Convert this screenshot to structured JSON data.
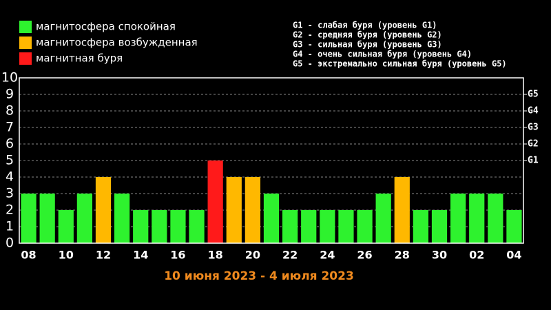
{
  "chart_data": {
    "type": "bar",
    "title": "10 июня 2023 - 4 июля 2023",
    "legend": [
      {
        "name": "магнитосфера спокойная",
        "color": "#2ef22e"
      },
      {
        "name": "магнитосфера возбужденная",
        "color": "#ffb800"
      },
      {
        "name": "магнитная буря",
        "color": "#ff1a1a"
      }
    ],
    "scale_notes": [
      "G1 - слабая буря (уровень G1)",
      "G2 - средняя буря (уровень G2)",
      "G3 - сильная буря (уровень G3)",
      "G4 - очень сильная буря (уровень G4)",
      "G5 - экстремально сильная буря (уровень G5)"
    ],
    "categories": [
      "08",
      null,
      "10",
      null,
      "12",
      null,
      "14",
      null,
      "16",
      null,
      "18",
      null,
      "20",
      null,
      "22",
      null,
      "24",
      null,
      "26",
      null,
      "28",
      null,
      "30",
      null,
      "02",
      null,
      "04"
    ],
    "values": [
      3,
      3,
      2,
      3,
      4,
      3,
      2,
      2,
      2,
      2,
      5,
      4,
      4,
      3,
      2,
      2,
      2,
      2,
      2,
      3,
      4,
      2,
      2,
      3,
      3,
      3,
      2
    ],
    "colors": [
      "#2ef22e",
      "#2ef22e",
      "#2ef22e",
      "#2ef22e",
      "#ffb800",
      "#2ef22e",
      "#2ef22e",
      "#2ef22e",
      "#2ef22e",
      "#2ef22e",
      "#ff1a1a",
      "#ffb800",
      "#ffb800",
      "#2ef22e",
      "#2ef22e",
      "#2ef22e",
      "#2ef22e",
      "#2ef22e",
      "#2ef22e",
      "#2ef22e",
      "#ffb800",
      "#2ef22e",
      "#2ef22e",
      "#2ef22e",
      "#2ef22e",
      "#2ef22e",
      "#2ef22e"
    ],
    "ylim": [
      0,
      10
    ],
    "yticks": [
      0,
      1,
      2,
      3,
      4,
      5,
      6,
      7,
      8,
      9,
      10
    ],
    "y2lim": [
      0,
      10
    ],
    "y2ticks": [
      {
        "value": 5,
        "label": "G1"
      },
      {
        "value": 6,
        "label": "G2"
      },
      {
        "value": 7,
        "label": "G3"
      },
      {
        "value": 8,
        "label": "G4"
      },
      {
        "value": 9,
        "label": "G5"
      }
    ],
    "grid": true
  }
}
